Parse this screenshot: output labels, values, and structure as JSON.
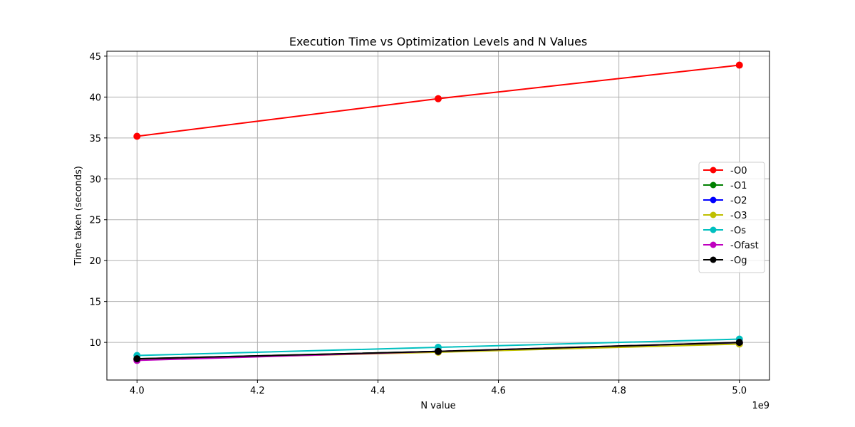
{
  "chart_data": {
    "type": "line",
    "title": "Execution Time vs Optimization Levels and N Values",
    "xlabel": "N value",
    "ylabel": "Time taken (seconds)",
    "x_offset_label": "1e9",
    "x": [
      4.0,
      4.5,
      5.0
    ],
    "x_unit_multiplier": 1000000000,
    "xlim": [
      3.95,
      5.05
    ],
    "ylim": [
      5.4,
      45.6
    ],
    "xticks": [
      "4.0",
      "4.2",
      "4.4",
      "4.6",
      "4.8",
      "5.0"
    ],
    "xtick_values": [
      4.0,
      4.2,
      4.4,
      4.6,
      4.8,
      5.0
    ],
    "yticks": [
      "10",
      "15",
      "20",
      "25",
      "30",
      "35",
      "40",
      "45"
    ],
    "ytick_values": [
      10,
      15,
      20,
      25,
      30,
      35,
      40,
      45
    ],
    "grid": true,
    "legend_position": "center-right",
    "series": [
      {
        "name": "-O0",
        "color": "#ff0000",
        "values": [
          35.2,
          39.8,
          43.9
        ]
      },
      {
        "name": "-O1",
        "color": "#008000",
        "values": [
          8.0,
          8.9,
          9.9
        ]
      },
      {
        "name": "-O2",
        "color": "#0000ff",
        "values": [
          7.9,
          8.9,
          9.9
        ]
      },
      {
        "name": "-O3",
        "color": "#bfbf00",
        "values": [
          7.9,
          8.8,
          9.8
        ]
      },
      {
        "name": "-Os",
        "color": "#00bfbf",
        "values": [
          8.4,
          9.4,
          10.4
        ]
      },
      {
        "name": "-Ofast",
        "color": "#bf00bf",
        "values": [
          7.8,
          8.9,
          10.0
        ]
      },
      {
        "name": "-Og",
        "color": "#000000",
        "values": [
          8.0,
          8.9,
          10.0
        ]
      }
    ]
  }
}
